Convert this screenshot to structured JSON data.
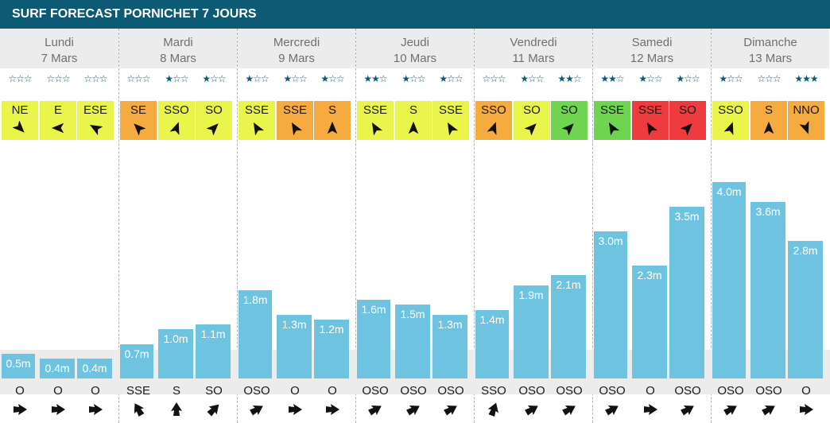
{
  "title": "SURF FORECAST PORNICHET 7 JOURS",
  "colors": {
    "header_bg": "#0c5a74",
    "bar": "#6ec3e0",
    "wind_yellow": "#e9f54a",
    "wind_orange": "#f5ab40",
    "wind_green": "#6fd44f",
    "wind_red": "#ee3b3f",
    "row_bg": "#ececec"
  },
  "days": [
    {
      "name": "Lundi",
      "date": "7 Mars"
    },
    {
      "name": "Mardi",
      "date": "8 Mars"
    },
    {
      "name": "Mercredi",
      "date": "9 Mars"
    },
    {
      "name": "Jeudi",
      "date": "10 Mars"
    },
    {
      "name": "Vendredi",
      "date": "11 Mars"
    },
    {
      "name": "Samedi",
      "date": "12 Mars"
    },
    {
      "name": "Dimanche",
      "date": "13 Mars"
    }
  ],
  "chart_data": {
    "type": "bar",
    "unit": "m",
    "ylim": [
      0,
      4.0
    ],
    "slots": [
      {
        "day": 0,
        "height": 0.5,
        "label": "0.5m",
        "stars": 0,
        "wind_dir": "NE",
        "wind_color": "yellow",
        "wind_heading": 135,
        "swell_dir": "O",
        "swell_heading": 90
      },
      {
        "day": 0,
        "height": 0.4,
        "label": "0.4m",
        "stars": 0,
        "wind_dir": "E",
        "wind_color": "yellow",
        "wind_heading": 270,
        "swell_dir": "O",
        "swell_heading": 90
      },
      {
        "day": 0,
        "height": 0.4,
        "label": "0.4m",
        "stars": 0,
        "wind_dir": "ESE",
        "wind_color": "yellow",
        "wind_heading": 300,
        "swell_dir": "O",
        "swell_heading": 90
      },
      {
        "day": 1,
        "height": 0.7,
        "label": "0.7m",
        "stars": 0,
        "wind_dir": "SE",
        "wind_color": "orange",
        "wind_heading": 315,
        "swell_dir": "SSE",
        "swell_heading": 330
      },
      {
        "day": 1,
        "height": 1.0,
        "label": "1.0m",
        "stars": 1,
        "wind_dir": "SSO",
        "wind_color": "yellow",
        "wind_heading": 20,
        "swell_dir": "S",
        "swell_heading": 0
      },
      {
        "day": 1,
        "height": 1.1,
        "label": "1.1m",
        "stars": 1,
        "wind_dir": "SO",
        "wind_color": "yellow",
        "wind_heading": 45,
        "swell_dir": "SO",
        "swell_heading": 45
      },
      {
        "day": 2,
        "height": 1.8,
        "label": "1.8m",
        "stars": 1,
        "wind_dir": "SSE",
        "wind_color": "yellow",
        "wind_heading": 330,
        "swell_dir": "OSO",
        "swell_heading": 60
      },
      {
        "day": 2,
        "height": 1.3,
        "label": "1.3m",
        "stars": 1,
        "wind_dir": "SSE",
        "wind_color": "orange",
        "wind_heading": 330,
        "swell_dir": "O",
        "swell_heading": 90
      },
      {
        "day": 2,
        "height": 1.2,
        "label": "1.2m",
        "stars": 1,
        "wind_dir": "S",
        "wind_color": "orange",
        "wind_heading": 0,
        "swell_dir": "O",
        "swell_heading": 90
      },
      {
        "day": 3,
        "height": 1.6,
        "label": "1.6m",
        "stars": 2,
        "wind_dir": "SSE",
        "wind_color": "yellow",
        "wind_heading": 330,
        "swell_dir": "OSO",
        "swell_heading": 60
      },
      {
        "day": 3,
        "height": 1.5,
        "label": "1.5m",
        "stars": 1,
        "wind_dir": "S",
        "wind_color": "yellow",
        "wind_heading": 0,
        "swell_dir": "OSO",
        "swell_heading": 60
      },
      {
        "day": 3,
        "height": 1.3,
        "label": "1.3m",
        "stars": 1,
        "wind_dir": "SSE",
        "wind_color": "yellow",
        "wind_heading": 330,
        "swell_dir": "OSO",
        "swell_heading": 60
      },
      {
        "day": 4,
        "height": 1.4,
        "label": "1.4m",
        "stars": 0,
        "wind_dir": "SSO",
        "wind_color": "orange",
        "wind_heading": 20,
        "swell_dir": "SSO",
        "swell_heading": 20
      },
      {
        "day": 4,
        "height": 1.9,
        "label": "1.9m",
        "stars": 1,
        "wind_dir": "SO",
        "wind_color": "yellow",
        "wind_heading": 45,
        "swell_dir": "OSO",
        "swell_heading": 60
      },
      {
        "day": 4,
        "height": 2.1,
        "label": "2.1m",
        "stars": 2,
        "wind_dir": "SO",
        "wind_color": "green",
        "wind_heading": 45,
        "swell_dir": "OSO",
        "swell_heading": 60
      },
      {
        "day": 5,
        "height": 3.0,
        "label": "3.0m",
        "stars": 2,
        "wind_dir": "SSE",
        "wind_color": "green",
        "wind_heading": 330,
        "swell_dir": "OSO",
        "swell_heading": 60
      },
      {
        "day": 5,
        "height": 2.3,
        "label": "2.3m",
        "stars": 1,
        "wind_dir": "SSE",
        "wind_color": "red",
        "wind_heading": 330,
        "swell_dir": "O",
        "swell_heading": 90
      },
      {
        "day": 5,
        "height": 3.5,
        "label": "3.5m",
        "stars": 1,
        "wind_dir": "SO",
        "wind_color": "red",
        "wind_heading": 45,
        "swell_dir": "OSO",
        "swell_heading": 60
      },
      {
        "day": 6,
        "height": 4.0,
        "label": "4.0m",
        "stars": 1,
        "wind_dir": "SSO",
        "wind_color": "yellow",
        "wind_heading": 20,
        "swell_dir": "OSO",
        "swell_heading": 60
      },
      {
        "day": 6,
        "height": 3.6,
        "label": "3.6m",
        "stars": 0,
        "wind_dir": "S",
        "wind_color": "orange",
        "wind_heading": 0,
        "swell_dir": "OSO",
        "swell_heading": 60
      },
      {
        "day": 6,
        "height": 2.8,
        "label": "2.8m",
        "stars": 3,
        "wind_dir": "NNO",
        "wind_color": "orange",
        "wind_heading": 160,
        "swell_dir": "O",
        "swell_heading": 90
      }
    ]
  }
}
